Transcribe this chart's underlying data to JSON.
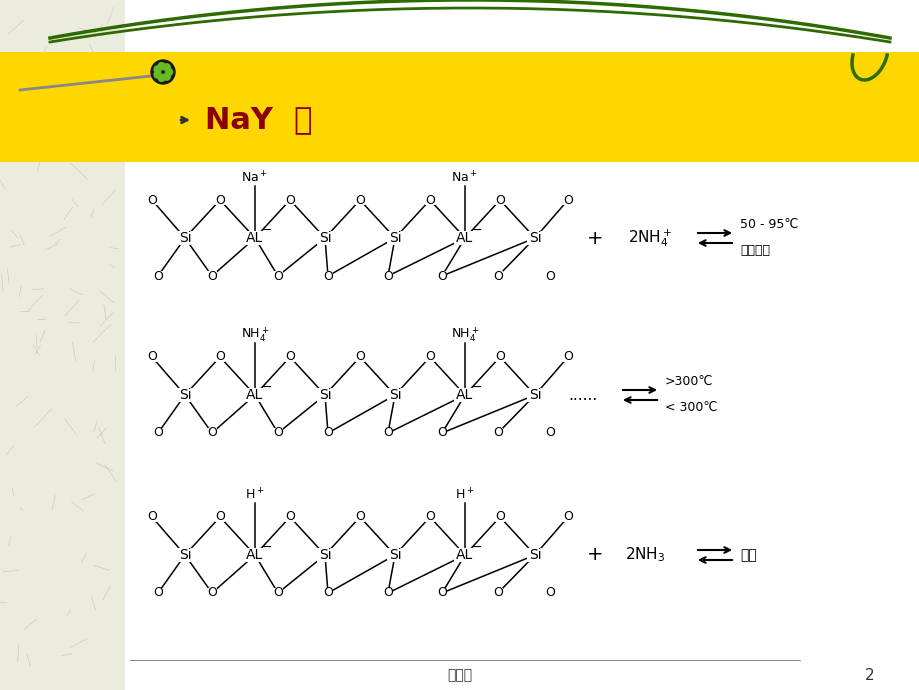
{
  "bg_color": "#ffffff",
  "header_bg": "#FFD700",
  "header_text": "NaY  例",
  "header_text_color": "#8B0000",
  "footer_text": "培训类",
  "footer_num": "2",
  "green_curve_color": "#2D6A00",
  "reaction1_ion": "Na$^+$",
  "reaction2_ion": "NH$_4^+$",
  "reaction3_ion": "H$^+$",
  "reaction1_right1": "50 - 95℃",
  "reaction1_right2": "离子交换",
  "reaction2_right1": ">300℃",
  "reaction2_right2": "< 300℃",
  "reaction3_right": "室温"
}
